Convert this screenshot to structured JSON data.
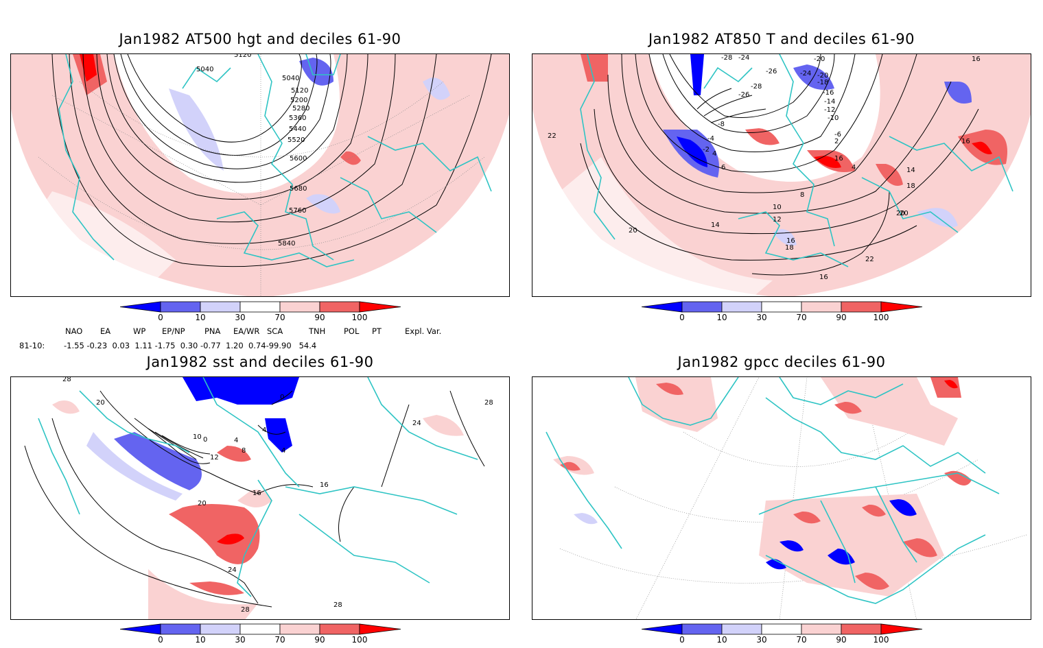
{
  "panels": [
    {
      "title": "Jan1982 AT500 hgt and deciles 61-90",
      "contour_labels": [
        "5120",
        "5040",
        "5040",
        "5120",
        "5200",
        "5280",
        "5360",
        "5440",
        "5520",
        "5600",
        "5680",
        "5760",
        "5840"
      ]
    },
    {
      "title": "Jan1982 AT850 T and deciles 61-90",
      "contour_labels": [
        "-28",
        "-24",
        "-20",
        "-26",
        "-24",
        "-20",
        "-28",
        "-26",
        "-18",
        "-16",
        "-14",
        "-12",
        "-10",
        "-8",
        "-6",
        "-4",
        "-2",
        "2",
        "4",
        "6",
        "8",
        "10",
        "12",
        "14",
        "16",
        "18",
        "20",
        "22",
        "16",
        "16",
        "14",
        "18",
        "20",
        "22",
        "20",
        "16",
        "16",
        "4",
        "6"
      ]
    },
    {
      "title": "Jan1982 sst and deciles 61-90",
      "contour_labels": [
        "28",
        "20",
        "10",
        "0",
        "4",
        "8",
        "12",
        "16",
        "20",
        "24",
        "28",
        "28",
        "24",
        "28",
        "16",
        "0",
        "4",
        "4"
      ]
    },
    {
      "title": "Jan1982 gpcc deciles 61-90",
      "contour_labels": []
    }
  ],
  "colorbar": {
    "ticks": [
      "0",
      "10",
      "30",
      "70",
      "90",
      "100"
    ],
    "colors": [
      "#0000ff",
      "#6464f0",
      "#d2d2fa",
      "#ffffff",
      "#fad2d2",
      "#f06464",
      "#ff0000"
    ]
  },
  "indices": {
    "headers": [
      "NAO",
      "EA",
      "WP",
      "EP/NP",
      "PNA",
      "EA/WR",
      "SCA",
      "TNH",
      "POL",
      "PT",
      "Expl. Var."
    ],
    "row_label": "81-10:",
    "row_text": "-1.55 -0.23  0.03  1.11 -1.75  0.30 -0.77  1.20  0.74-99.90   54.4"
  },
  "colors": {
    "coast": "#2ec4c4",
    "contour": "#000000",
    "pink": "#fad2d2",
    "red": "#f06464",
    "deep_red": "#ff0000",
    "lblue": "#d2d2fa",
    "blue": "#6464f0",
    "deep_blue": "#0000ff"
  }
}
